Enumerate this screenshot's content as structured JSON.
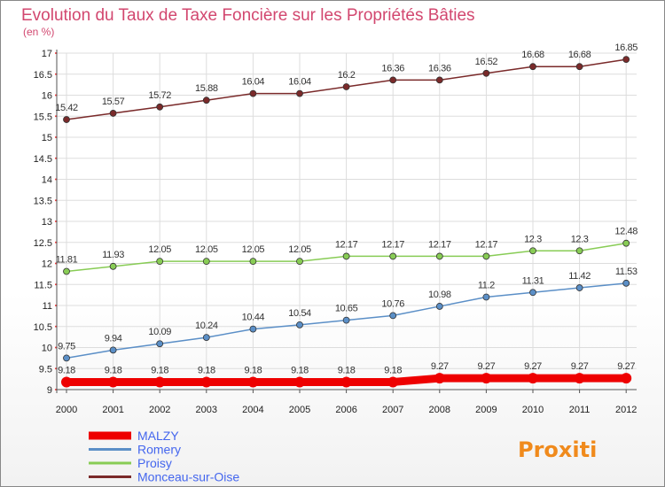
{
  "chart_data": {
    "type": "line",
    "title": "Evolution du Taux de Taxe Foncière sur les Propriétés Bâties",
    "ylabel": "(en %)",
    "xlabel": "",
    "x": [
      "2000",
      "2001",
      "2002",
      "2003",
      "2004",
      "2005",
      "2006",
      "2007",
      "2008",
      "2009",
      "2010",
      "2011",
      "2012"
    ],
    "ylim": [
      9,
      17
    ],
    "yticks": [
      "9",
      "9.5",
      "10",
      "10.5",
      "11",
      "11.5",
      "12",
      "12.5",
      "13",
      "13.5",
      "14",
      "14.5",
      "15",
      "15.5",
      "16",
      "16.5",
      "17"
    ],
    "grid": true,
    "legend_position": "bottom-left",
    "series": [
      {
        "name": "MALZY",
        "color": "#ee0000",
        "values": [
          9.18,
          9.18,
          9.18,
          9.18,
          9.18,
          9.18,
          9.18,
          9.18,
          9.27,
          9.27,
          9.27,
          9.27,
          9.27
        ],
        "labels": [
          "9.18",
          "9.18",
          "9.18",
          "9.18",
          "9.18",
          "9.18",
          "9.18",
          "9.18",
          "9.27",
          "9.27",
          "9.27",
          "9.27",
          "9.27"
        ]
      },
      {
        "name": "Romery",
        "color": "#5b8fc7",
        "values": [
          9.75,
          9.94,
          10.09,
          10.24,
          10.44,
          10.54,
          10.65,
          10.76,
          10.98,
          11.2,
          11.31,
          11.42,
          11.53
        ],
        "labels": [
          "9.75",
          "9.94",
          "10.09",
          "10.24",
          "10.44",
          "10.54",
          "10.65",
          "10.76",
          "10.98",
          "11.2",
          "11.31",
          "11.42",
          "11.53"
        ]
      },
      {
        "name": "Proisy",
        "color": "#88cc55",
        "values": [
          11.81,
          11.93,
          12.05,
          12.05,
          12.05,
          12.05,
          12.17,
          12.17,
          12.17,
          12.17,
          12.3,
          12.3,
          12.48
        ],
        "labels": [
          "11.81",
          "11.93",
          "12.05",
          "12.05",
          "12.05",
          "12.05",
          "12.17",
          "12.17",
          "12.17",
          "12.17",
          "12.3",
          "12.3",
          "12.48"
        ]
      },
      {
        "name": "Monceau-sur-Oise",
        "color": "#7a2a2a",
        "values": [
          15.42,
          15.57,
          15.72,
          15.88,
          16.04,
          16.04,
          16.2,
          16.36,
          16.36,
          16.52,
          16.68,
          16.68,
          16.85
        ],
        "labels": [
          "15.42",
          "15.57",
          "15.72",
          "15.88",
          "16.04",
          "16.04",
          "16.2",
          "16.36",
          "16.36",
          "16.52",
          "16.68",
          "16.68",
          "16.85"
        ]
      }
    ]
  },
  "logo": {
    "text": "Proxiti"
  }
}
